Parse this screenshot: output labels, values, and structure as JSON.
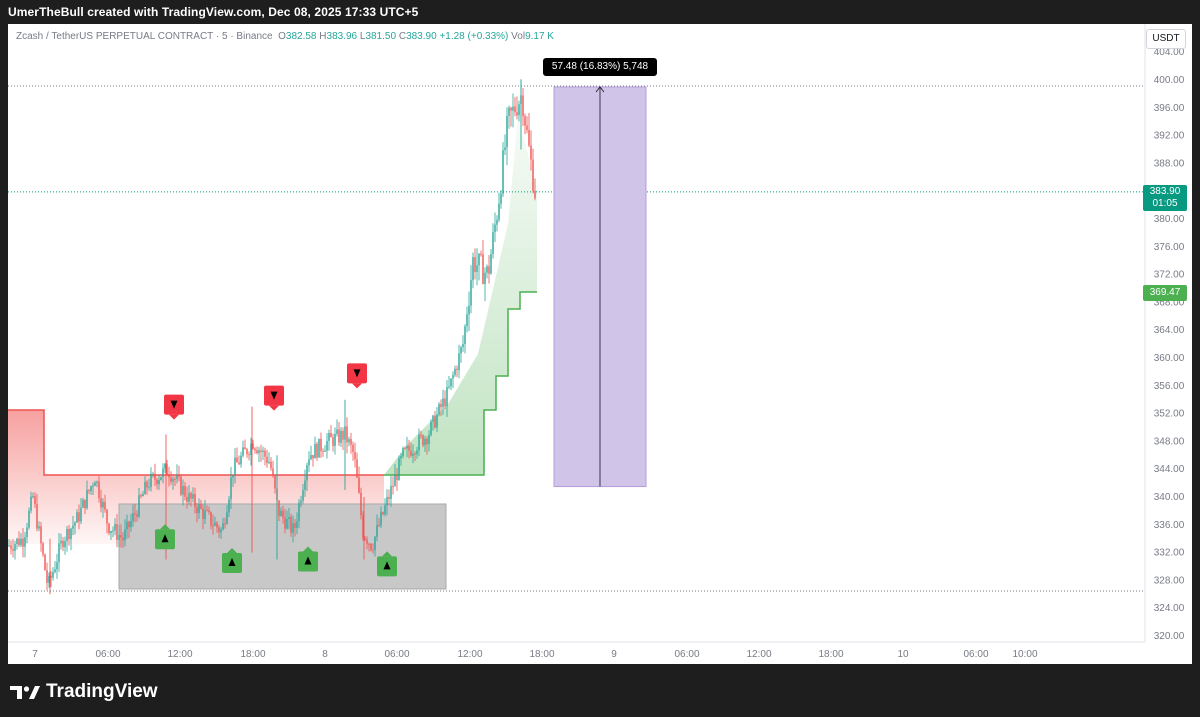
{
  "header": {
    "caption": "UmerTheBull created with TradingView.com, Dec 08, 2025 17:33 UTC+5"
  },
  "legend": {
    "symbol": "Zcash / TetherUS PERPETUAL CONTRACT · 5 · Binance",
    "open_label": "O",
    "open": "382.58",
    "high_label": "H",
    "high": "383.96",
    "low_label": "L",
    "low": "381.50",
    "close_label": "C",
    "close": "383.90",
    "change": "+1.28 (+0.33%)",
    "vol_label": "Vol",
    "vol": "9.17 K"
  },
  "currency_button": "USDT",
  "price_axis": {
    "ticks": [
      "404.00",
      "400.00",
      "396.00",
      "392.00",
      "388.00",
      "384.00",
      "380.00",
      "376.00",
      "372.00",
      "368.00",
      "364.00",
      "360.00",
      "356.00",
      "352.00",
      "348.00",
      "344.00",
      "340.00",
      "336.00",
      "332.00",
      "328.00",
      "324.00",
      "320.00"
    ],
    "last_price": "383.90",
    "countdown": "01:05",
    "indicator_price": "369.47"
  },
  "time_axis": {
    "ticks": [
      "7",
      "06:00",
      "12:00",
      "18:00",
      "8",
      "06:00",
      "12:00",
      "18:00",
      "9",
      "06:00",
      "12:00",
      "18:00",
      "10",
      "06:00",
      "10:00"
    ]
  },
  "measure_tool": {
    "label": "57.48 (16.83%) 5,748",
    "from_price": 341.5,
    "to_price": 399.0
  },
  "colors": {
    "up": "#26a69a",
    "down": "#ef5350",
    "buy_marker": "#4caf50",
    "sell_marker": "#f23645",
    "measure_fill": "#d1c4e9",
    "zone_fill": "#c8c8c8",
    "last_price": "#089981"
  },
  "signals": {
    "buy": [
      {
        "time": "11:05",
        "price": 334.2
      },
      {
        "time": "16:15",
        "price": 330.8
      },
      {
        "time": "22:45",
        "price": 331.0
      },
      {
        "time": "05:05",
        "price": 330.3
      }
    ],
    "sell": [
      {
        "time": "10:50",
        "price": 353.0
      },
      {
        "time": "19:25",
        "price": 354.3
      },
      {
        "time": "02:45",
        "price": 357.5
      }
    ]
  },
  "footer": {
    "brand": "TradingView"
  }
}
